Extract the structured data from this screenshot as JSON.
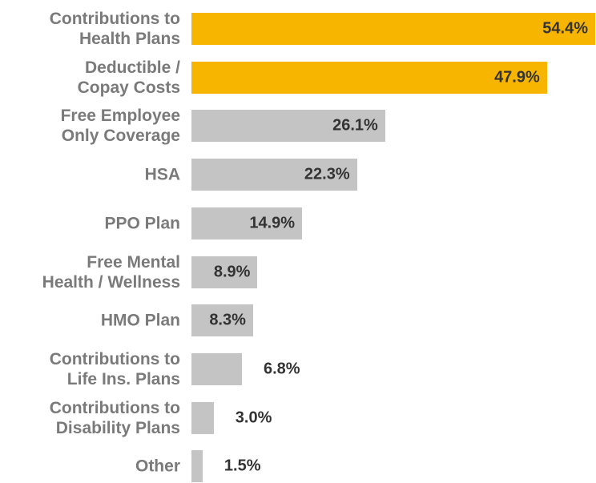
{
  "chart_data": {
    "type": "bar",
    "orientation": "horizontal",
    "categories": [
      "Contributions to\nHealth Plans",
      "Deductible /\nCopay Costs",
      "Free Employee\nOnly Coverage",
      "HSA",
      "PPO Plan",
      "Free Mental\nHealth / Wellness",
      "HMO Plan",
      "Contributions to\nLife Ins. Plans",
      "Contributions to\nDisability Plans",
      "Other"
    ],
    "values": [
      54.4,
      47.9,
      26.1,
      22.3,
      14.9,
      8.9,
      8.3,
      6.8,
      3.0,
      1.5
    ],
    "value_labels": [
      "54.4%",
      "47.9%",
      "26.1%",
      "22.3%",
      "14.9%",
      "8.9%",
      "8.3%",
      "6.8%",
      "3.0%",
      "1.5%"
    ],
    "colors": [
      "#f7b500",
      "#f7b500",
      "#c4c4c4",
      "#c4c4c4",
      "#c4c4c4",
      "#c4c4c4",
      "#c4c4c4",
      "#c4c4c4",
      "#c4c4c4",
      "#c4c4c4"
    ]
  }
}
